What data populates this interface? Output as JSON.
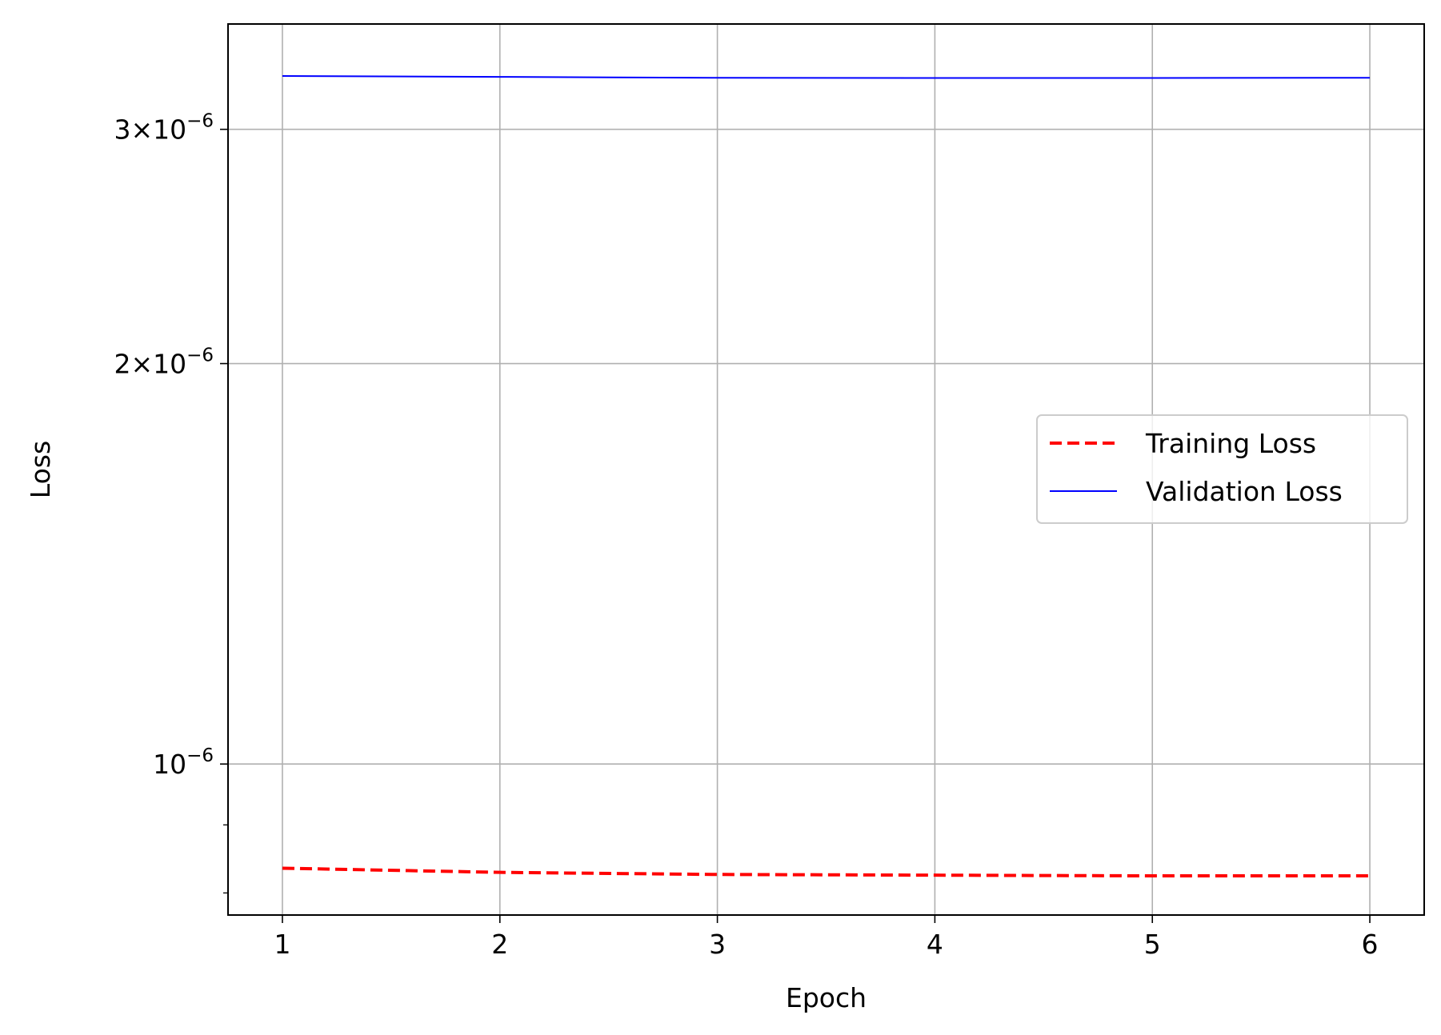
{
  "chart_data": {
    "type": "line",
    "x": [
      1,
      2,
      3,
      4,
      5,
      6
    ],
    "series": [
      {
        "name": "Training Loss",
        "values": [
          8.35e-07,
          8.29e-07,
          8.26e-07,
          8.25e-07,
          8.24e-07,
          8.24e-07
        ],
        "color": "#ff0000",
        "style": "dashed"
      },
      {
        "name": "Validation Loss",
        "values": [
          3.29e-06,
          3.285e-06,
          3.28e-06,
          3.279e-06,
          3.279e-06,
          3.28e-06
        ],
        "color": "#0000ff",
        "style": "solid"
      }
    ],
    "title": "",
    "xlabel": "Epoch",
    "ylabel": "Loss",
    "xlim": [
      0.75,
      6.25
    ],
    "ylim": [
      7.7e-07,
      3.6e-06
    ],
    "yscale": "log",
    "grid": true,
    "legend_position": "center-right",
    "x_ticks": [
      {
        "value": 1,
        "label": "1"
      },
      {
        "value": 2,
        "label": "2"
      },
      {
        "value": 3,
        "label": "3"
      },
      {
        "value": 4,
        "label": "4"
      },
      {
        "value": 5,
        "label": "5"
      },
      {
        "value": 6,
        "label": "6"
      }
    ],
    "y_ticks": [
      {
        "value": 1e-06,
        "mantissa": "",
        "exponent": "−6"
      },
      {
        "value": 2e-06,
        "mantissa": "2",
        "exponent": "−6"
      },
      {
        "value": 3e-06,
        "mantissa": "3",
        "exponent": "−6"
      }
    ],
    "y_minor_ticks": [
      8e-07,
      9e-07
    ]
  }
}
